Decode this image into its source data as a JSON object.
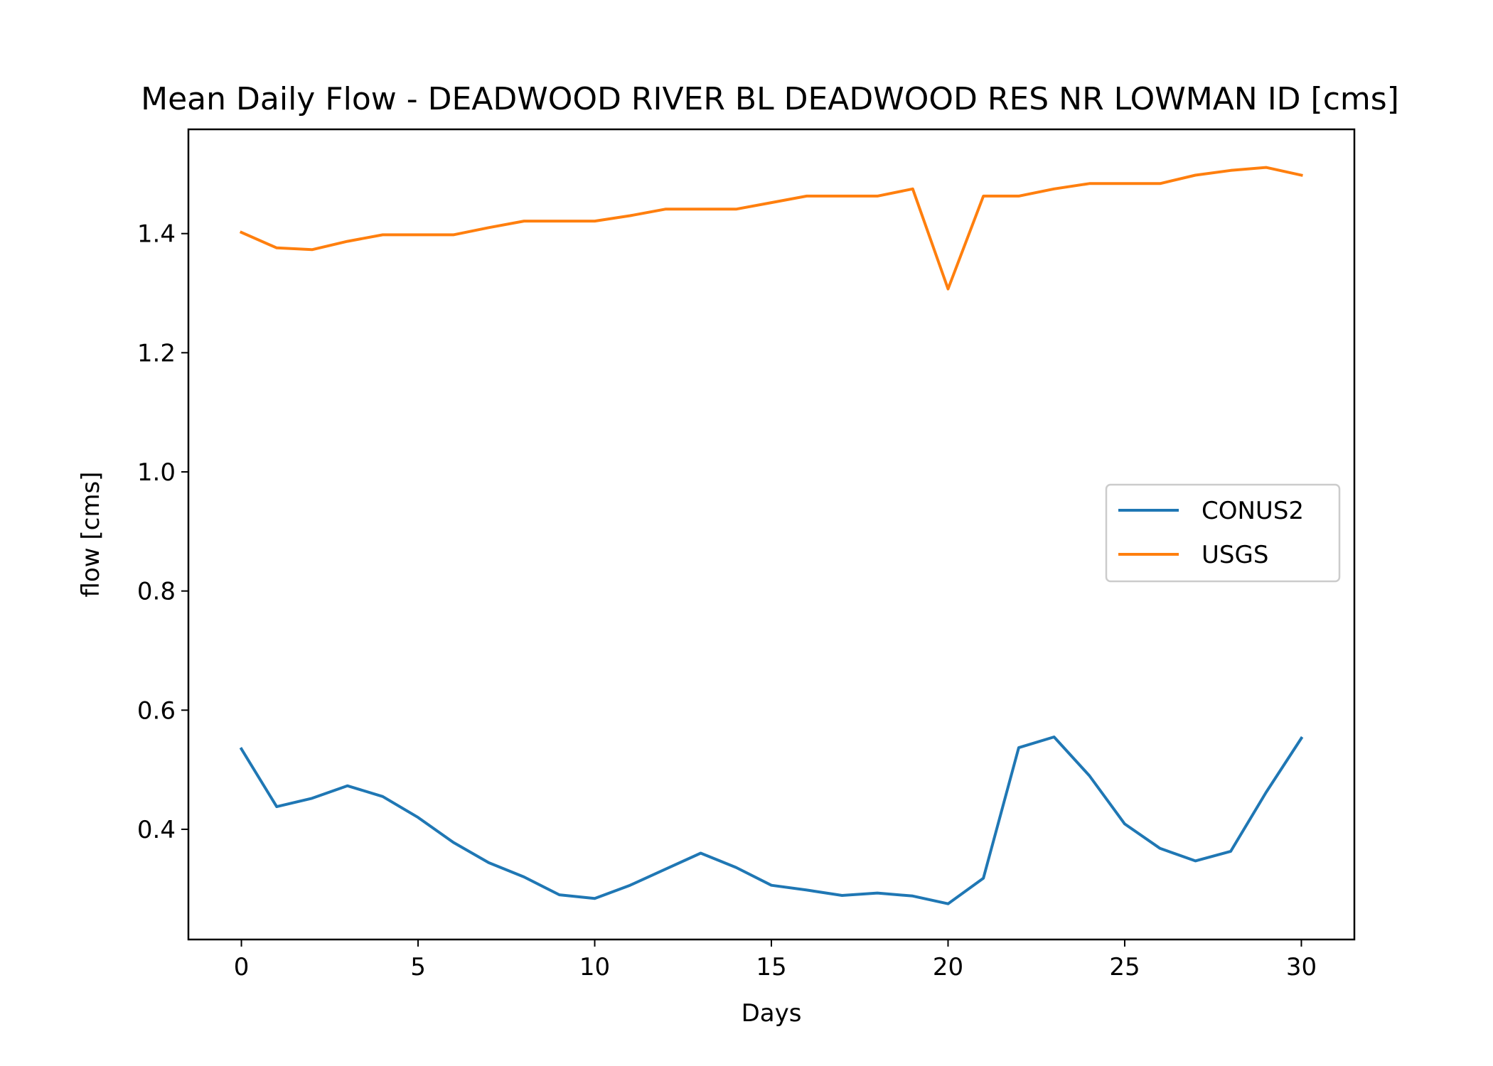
{
  "chart_data": {
    "type": "line",
    "title": "Mean Daily Flow - DEADWOOD RIVER BL DEADWOOD RES NR LOWMAN ID [cms]",
    "xlabel": "Days",
    "ylabel": "flow [cms]",
    "xlim": [
      -1.5,
      31.5
    ],
    "ylim": [
      0.215,
      1.575
    ],
    "xticks": [
      0,
      5,
      10,
      15,
      20,
      25,
      30
    ],
    "yticks": [
      0.4,
      0.6,
      0.8,
      1.0,
      1.2,
      1.4
    ],
    "ytick_labels": [
      "0.4",
      "0.6",
      "0.8",
      "1.0",
      "1.2",
      "1.4"
    ],
    "grid": false,
    "legend_position": "center-right",
    "x": [
      0,
      1,
      2,
      3,
      4,
      5,
      6,
      7,
      8,
      9,
      10,
      11,
      12,
      13,
      14,
      15,
      16,
      17,
      18,
      19,
      20,
      21,
      22,
      23,
      24,
      25,
      26,
      27,
      28,
      29,
      30
    ],
    "series": [
      {
        "name": "CONUS2",
        "color": "#1f77b4",
        "values": [
          0.535,
          0.438,
          0.452,
          0.473,
          0.455,
          0.42,
          0.378,
          0.344,
          0.32,
          0.29,
          0.284,
          0.306,
          0.333,
          0.36,
          0.336,
          0.306,
          0.298,
          0.289,
          0.293,
          0.288,
          0.275,
          0.318,
          0.537,
          0.555,
          0.49,
          0.409,
          0.368,
          0.347,
          0.363,
          0.462,
          0.553
        ]
      },
      {
        "name": "USGS",
        "color": "#ff7f0e",
        "values": [
          1.402,
          1.376,
          1.373,
          1.387,
          1.398,
          1.398,
          1.398,
          1.41,
          1.421,
          1.421,
          1.421,
          1.43,
          1.441,
          1.441,
          1.441,
          1.452,
          1.463,
          1.463,
          1.463,
          1.475,
          1.307,
          1.463,
          1.463,
          1.475,
          1.484,
          1.484,
          1.484,
          1.498,
          1.506,
          1.511,
          1.498
        ]
      }
    ]
  }
}
